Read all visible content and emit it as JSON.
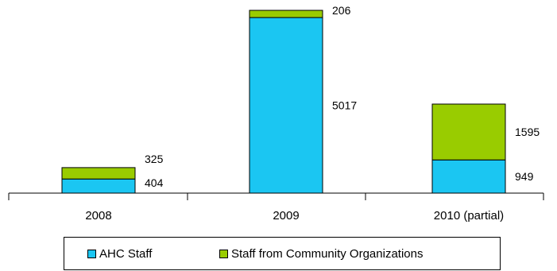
{
  "chart_data": {
    "type": "bar",
    "stacked": true,
    "categories": [
      "2008",
      "2009",
      "2010 (partial)"
    ],
    "series": [
      {
        "name": "AHC Staff",
        "color": "#1BC6F2",
        "values": [
          404,
          5017,
          949
        ]
      },
      {
        "name": "Staff from Community Organizations",
        "color": "#99CC00",
        "values": [
          325,
          206,
          1595
        ]
      }
    ],
    "title": "",
    "xlabel": "",
    "ylabel": "",
    "ylim": [
      0,
      5223
    ],
    "grid": false,
    "legend_position": "bottom",
    "data_label_colors": {
      "text": "#000000"
    }
  }
}
